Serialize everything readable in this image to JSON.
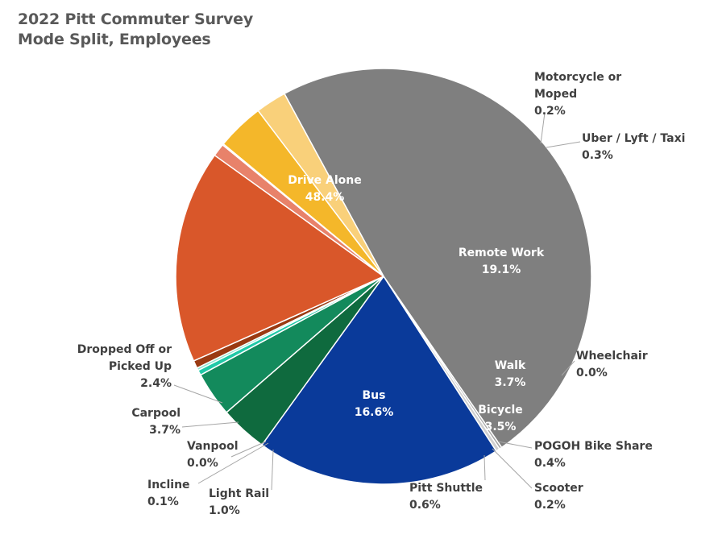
{
  "title_line1": "2022 Pitt Commuter Survey",
  "title_line2": "Mode Split, Employees",
  "chart_data": {
    "type": "pie",
    "title": "2022 Pitt Commuter Survey Mode Split, Employees",
    "legend": "none",
    "slices": [
      {
        "name": "Drive Alone",
        "label": "Drive Alone",
        "value": 48.4,
        "display": "48.4%",
        "color": "#7f7f7f"
      },
      {
        "name": "Motorcycle or Moped",
        "label": "Motorcycle or|Moped",
        "value": 0.2,
        "display": "0.2%",
        "color": "#a6a6a6"
      },
      {
        "name": "Uber / Lyft / Taxi",
        "label": "Uber / Lyft / Taxi",
        "value": 0.3,
        "display": "0.3%",
        "color": "#d0d0d0"
      },
      {
        "name": "Remote Work",
        "label": "Remote Work",
        "value": 19.1,
        "display": "19.1%",
        "color": "#0a3a9a"
      },
      {
        "name": "Wheelchair",
        "label": "Wheelchair",
        "value": 0.0,
        "display": "0.0%",
        "color": "#1f4e79"
      },
      {
        "name": "Walk",
        "label": "Walk",
        "value": 3.7,
        "display": "3.7%",
        "color": "#0f6a3e"
      },
      {
        "name": "Bicycle",
        "label": "Bicycle",
        "value": 3.5,
        "display": "3.5%",
        "color": "#138a5c"
      },
      {
        "name": "POGOH Bike Share",
        "label": "POGOH Bike Share",
        "value": 0.4,
        "display": "0.4%",
        "color": "#21c9a7"
      },
      {
        "name": "Scooter",
        "label": "Scooter",
        "value": 0.2,
        "display": "0.2%",
        "color": "#8fe5d0"
      },
      {
        "name": "Pitt Shuttle",
        "label": "Pitt Shuttle",
        "value": 0.6,
        "display": "0.6%",
        "color": "#9a3a12"
      },
      {
        "name": "Bus",
        "label": "Bus",
        "value": 16.6,
        "display": "16.6%",
        "color": "#d9572a"
      },
      {
        "name": "Light Rail",
        "label": "Light Rail",
        "value": 1.0,
        "display": "1.0%",
        "color": "#e8826a"
      },
      {
        "name": "Incline",
        "label": "Incline",
        "value": 0.1,
        "display": "0.1%",
        "color": "#f2b39f"
      },
      {
        "name": "Vanpool",
        "label": "Vanpool",
        "value": 0.0,
        "display": "0.0%",
        "color": "#e3a020"
      },
      {
        "name": "Carpool",
        "label": "Carpool",
        "value": 3.7,
        "display": "3.7%",
        "color": "#f4b72a"
      },
      {
        "name": "Dropped Off or Picked Up",
        "label": "Dropped Off or|Picked Up",
        "value": 2.4,
        "display": "2.4%",
        "color": "#f9d07a"
      }
    ]
  }
}
